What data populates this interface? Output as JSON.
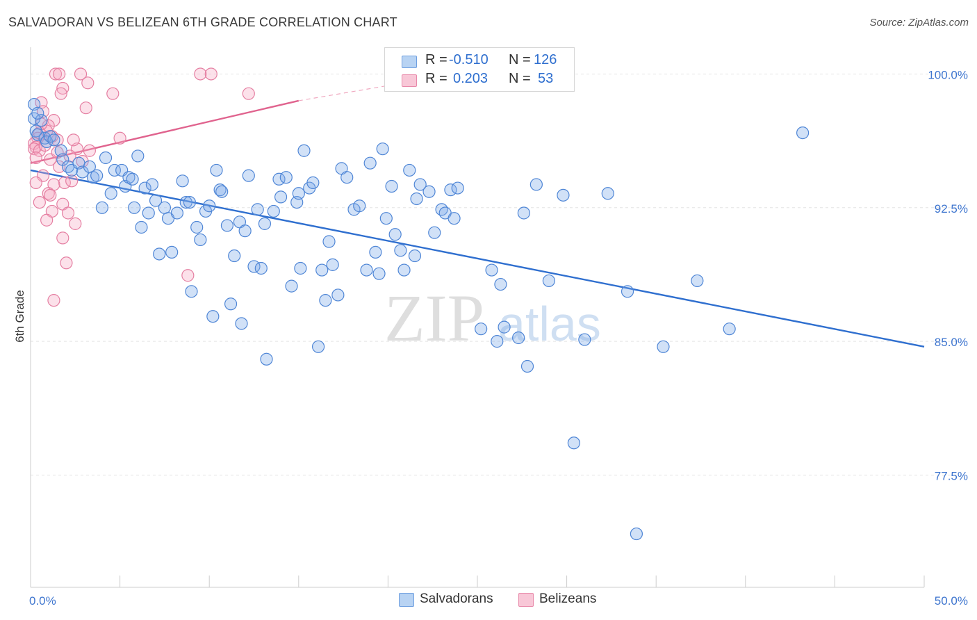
{
  "title": "SALVADORAN VS BELIZEAN 6TH GRADE CORRELATION CHART",
  "source": "Source: ZipAtlas.com",
  "watermark": {
    "zip": "ZIP",
    "atlas": "atlas"
  },
  "legend": {
    "rows": [
      {
        "r_label": "R =",
        "r_value": "-0.510",
        "n_label": "N =",
        "n_value": "126",
        "color": "#a8c8f0",
        "border": "#6f9fe0"
      },
      {
        "r_label": "R =",
        "r_value": "0.203",
        "n_label": "N =",
        "n_value": "53",
        "color": "#f7bcd0",
        "border": "#e889aa"
      }
    ]
  },
  "bottom_legend": [
    {
      "label": "Salvadorans",
      "color": "#a8c8f0",
      "border": "#6f9fe0"
    },
    {
      "label": "Belizeans",
      "color": "#f7bcd0",
      "border": "#e889aa"
    }
  ],
  "chart_data": {
    "type": "scatter",
    "title": "SALVADORAN VS BELIZEAN 6TH GRADE CORRELATION CHART",
    "xlabel": "",
    "ylabel": "6th Grade",
    "xlim": [
      0,
      50
    ],
    "ylim": [
      71.2,
      101.5
    ],
    "x_tick_labels": [
      {
        "value": 0,
        "label": "0.0%"
      },
      {
        "value": 50,
        "label": "50.0%"
      }
    ],
    "y_tick_labels": [
      {
        "value": 100,
        "label": "100.0%"
      },
      {
        "value": 92.5,
        "label": "92.5%"
      },
      {
        "value": 85,
        "label": "85.0%"
      },
      {
        "value": 77.5,
        "label": "77.5%"
      }
    ],
    "grid": true,
    "legend_position": "top-center",
    "series": [
      {
        "name": "Salvadorans",
        "color": "#7aaae8",
        "edge": "#4f86d6",
        "trend": {
          "x": [
            0,
            50
          ],
          "y": [
            94.6,
            84.7
          ],
          "color": "#2f6fcf"
        },
        "points": [
          [
            0.2,
            98.3
          ],
          [
            0.2,
            97.5
          ],
          [
            0.3,
            96.8
          ],
          [
            0.4,
            96.6
          ],
          [
            0.6,
            97.4
          ],
          [
            0.8,
            96.4
          ],
          [
            0.9,
            96.2
          ],
          [
            1.1,
            96.5
          ],
          [
            1.3,
            96.3
          ],
          [
            0.4,
            97.8
          ],
          [
            1.7,
            95.7
          ],
          [
            1.8,
            95.2
          ],
          [
            2.1,
            94.8
          ],
          [
            2.3,
            94.6
          ],
          [
            2.7,
            95.0
          ],
          [
            2.9,
            94.5
          ],
          [
            3.3,
            94.8
          ],
          [
            3.5,
            94.2
          ],
          [
            3.7,
            94.3
          ],
          [
            4.2,
            95.3
          ],
          [
            4.5,
            93.3
          ],
          [
            4.7,
            94.6
          ],
          [
            4.0,
            92.5
          ],
          [
            5.1,
            94.6
          ],
          [
            5.3,
            93.7
          ],
          [
            5.5,
            94.2
          ],
          [
            5.7,
            94.1
          ],
          [
            5.8,
            92.5
          ],
          [
            6.0,
            95.4
          ],
          [
            6.2,
            91.4
          ],
          [
            6.4,
            93.6
          ],
          [
            6.6,
            92.2
          ],
          [
            6.8,
            93.8
          ],
          [
            7.0,
            92.9
          ],
          [
            7.2,
            89.9
          ],
          [
            7.5,
            92.5
          ],
          [
            7.7,
            91.9
          ],
          [
            7.9,
            90.0
          ],
          [
            8.2,
            92.2
          ],
          [
            8.5,
            94.0
          ],
          [
            8.7,
            92.8
          ],
          [
            8.9,
            92.8
          ],
          [
            9.0,
            87.8
          ],
          [
            9.3,
            91.4
          ],
          [
            9.5,
            90.7
          ],
          [
            9.8,
            92.3
          ],
          [
            10.0,
            92.6
          ],
          [
            10.2,
            86.4
          ],
          [
            10.4,
            94.6
          ],
          [
            10.6,
            93.5
          ],
          [
            10.7,
            93.4
          ],
          [
            11.0,
            91.5
          ],
          [
            11.2,
            87.1
          ],
          [
            11.4,
            89.8
          ],
          [
            11.7,
            91.7
          ],
          [
            11.8,
            86.0
          ],
          [
            12.0,
            91.2
          ],
          [
            12.2,
            94.3
          ],
          [
            12.5,
            89.2
          ],
          [
            12.7,
            92.4
          ],
          [
            12.9,
            89.1
          ],
          [
            13.1,
            91.6
          ],
          [
            13.2,
            84.0
          ],
          [
            13.6,
            92.3
          ],
          [
            13.9,
            94.1
          ],
          [
            14.0,
            93.1
          ],
          [
            14.3,
            94.2
          ],
          [
            14.6,
            88.1
          ],
          [
            14.9,
            92.8
          ],
          [
            15.1,
            89.1
          ],
          [
            15.3,
            95.7
          ],
          [
            15.6,
            93.6
          ],
          [
            15.8,
            93.9
          ],
          [
            16.1,
            84.7
          ],
          [
            16.3,
            89.0
          ],
          [
            16.5,
            87.3
          ],
          [
            16.7,
            90.6
          ],
          [
            16.9,
            89.3
          ],
          [
            17.2,
            87.6
          ],
          [
            17.4,
            94.7
          ],
          [
            17.7,
            94.2
          ],
          [
            18.1,
            92.4
          ],
          [
            18.4,
            92.6
          ],
          [
            18.8,
            89.0
          ],
          [
            19.0,
            95.0
          ],
          [
            19.3,
            90.0
          ],
          [
            19.5,
            88.8
          ],
          [
            19.7,
            95.8
          ],
          [
            19.9,
            91.9
          ],
          [
            20.2,
            93.7
          ],
          [
            20.4,
            91.0
          ],
          [
            20.7,
            90.1
          ],
          [
            20.9,
            89.0
          ],
          [
            21.2,
            94.6
          ],
          [
            21.5,
            89.8
          ],
          [
            21.6,
            93.0
          ],
          [
            21.8,
            93.8
          ],
          [
            22.3,
            93.4
          ],
          [
            22.6,
            91.1
          ],
          [
            23.0,
            92.4
          ],
          [
            23.2,
            92.2
          ],
          [
            23.5,
            93.5
          ],
          [
            23.7,
            91.9
          ],
          [
            23.9,
            93.6
          ],
          [
            25.2,
            85.7
          ],
          [
            25.8,
            89.0
          ],
          [
            26.1,
            85.0
          ],
          [
            26.3,
            88.2
          ],
          [
            26.5,
            85.8
          ],
          [
            27.3,
            85.2
          ],
          [
            27.8,
            83.6
          ],
          [
            27.6,
            92.2
          ],
          [
            28.3,
            93.8
          ],
          [
            29.0,
            88.4
          ],
          [
            29.8,
            93.2
          ],
          [
            30.4,
            79.3
          ],
          [
            31.0,
            85.1
          ],
          [
            32.3,
            93.3
          ],
          [
            33.4,
            87.8
          ],
          [
            33.9,
            74.2
          ],
          [
            35.4,
            84.7
          ],
          [
            37.3,
            88.4
          ],
          [
            39.1,
            85.7
          ],
          [
            43.2,
            96.7
          ],
          [
            24.9,
            100.1
          ],
          [
            15.0,
            93.3
          ]
        ]
      },
      {
        "name": "Belizeans",
        "color": "#f5a9c4",
        "edge": "#e57fa2",
        "trend": {
          "x": [
            0,
            15
          ],
          "y": [
            95.0,
            98.5
          ],
          "color": "#e0638e"
        },
        "trend_extension": {
          "x": [
            15,
            25
          ],
          "y": [
            98.5,
            100.2
          ]
        },
        "points": [
          [
            1.4,
            100.0
          ],
          [
            1.6,
            100.0
          ],
          [
            2.8,
            100.0
          ],
          [
            3.2,
            99.5
          ],
          [
            1.8,
            99.2
          ],
          [
            1.7,
            98.9
          ],
          [
            4.6,
            98.9
          ],
          [
            9.5,
            100.0
          ],
          [
            10.1,
            100.0
          ],
          [
            12.2,
            98.9
          ],
          [
            0.6,
            98.4
          ],
          [
            0.7,
            97.9
          ],
          [
            3.1,
            98.1
          ],
          [
            1.3,
            97.4
          ],
          [
            1.0,
            97.1
          ],
          [
            0.9,
            96.8
          ],
          [
            0.5,
            96.7
          ],
          [
            0.4,
            96.4
          ],
          [
            1.5,
            96.3
          ],
          [
            1.2,
            96.5
          ],
          [
            0.2,
            96.1
          ],
          [
            0.3,
            95.9
          ],
          [
            0.2,
            95.8
          ],
          [
            0.5,
            95.7
          ],
          [
            0.3,
            95.3
          ],
          [
            1.1,
            95.2
          ],
          [
            2.6,
            95.8
          ],
          [
            3.3,
            95.7
          ],
          [
            5.0,
            96.4
          ],
          [
            2.2,
            95.4
          ],
          [
            1.6,
            94.8
          ],
          [
            0.7,
            94.3
          ],
          [
            0.3,
            93.9
          ],
          [
            1.9,
            93.9
          ],
          [
            2.3,
            94.0
          ],
          [
            1.3,
            93.8
          ],
          [
            1.0,
            93.3
          ],
          [
            1.1,
            93.2
          ],
          [
            0.5,
            92.8
          ],
          [
            1.8,
            92.7
          ],
          [
            2.1,
            92.2
          ],
          [
            1.2,
            92.3
          ],
          [
            0.9,
            91.8
          ],
          [
            2.5,
            91.6
          ],
          [
            1.8,
            90.8
          ],
          [
            2.0,
            89.4
          ],
          [
            1.3,
            87.3
          ],
          [
            8.8,
            88.7
          ],
          [
            0.6,
            97.2
          ],
          [
            2.4,
            96.3
          ],
          [
            1.5,
            95.6
          ],
          [
            0.8,
            96.0
          ],
          [
            2.9,
            95.1
          ]
        ]
      }
    ]
  }
}
